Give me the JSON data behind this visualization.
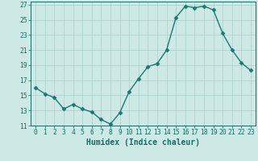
{
  "x": [
    0,
    1,
    2,
    3,
    4,
    5,
    6,
    7,
    8,
    9,
    10,
    11,
    12,
    13,
    14,
    15,
    16,
    17,
    18,
    19,
    20,
    21,
    22,
    23
  ],
  "y": [
    16.0,
    15.2,
    14.7,
    13.2,
    13.8,
    13.2,
    12.8,
    11.8,
    11.2,
    12.7,
    15.5,
    17.2,
    18.8,
    19.2,
    21.0,
    25.3,
    26.8,
    26.6,
    26.8,
    26.3,
    23.2,
    21.0,
    19.3,
    18.3
  ],
  "line_color": "#1a7a6e",
  "marker": "D",
  "markersize": 2.5,
  "linewidth": 1.0,
  "bg_color": "#cce9e5",
  "grid_color": "#aacfcb",
  "xlabel": "Humidex (Indice chaleur)",
  "xlim": [
    -0.5,
    23.5
  ],
  "ylim": [
    11,
    27.4
  ],
  "yticks": [
    11,
    13,
    15,
    17,
    19,
    21,
    23,
    25,
    27
  ],
  "xticks": [
    0,
    1,
    2,
    3,
    4,
    5,
    6,
    7,
    8,
    9,
    10,
    11,
    12,
    13,
    14,
    15,
    16,
    17,
    18,
    19,
    20,
    21,
    22,
    23
  ],
  "tick_color": "#1a6b60",
  "axis_color": "#1a6b60",
  "tick_fontsize": 5.8,
  "xlabel_fontsize": 7.0
}
